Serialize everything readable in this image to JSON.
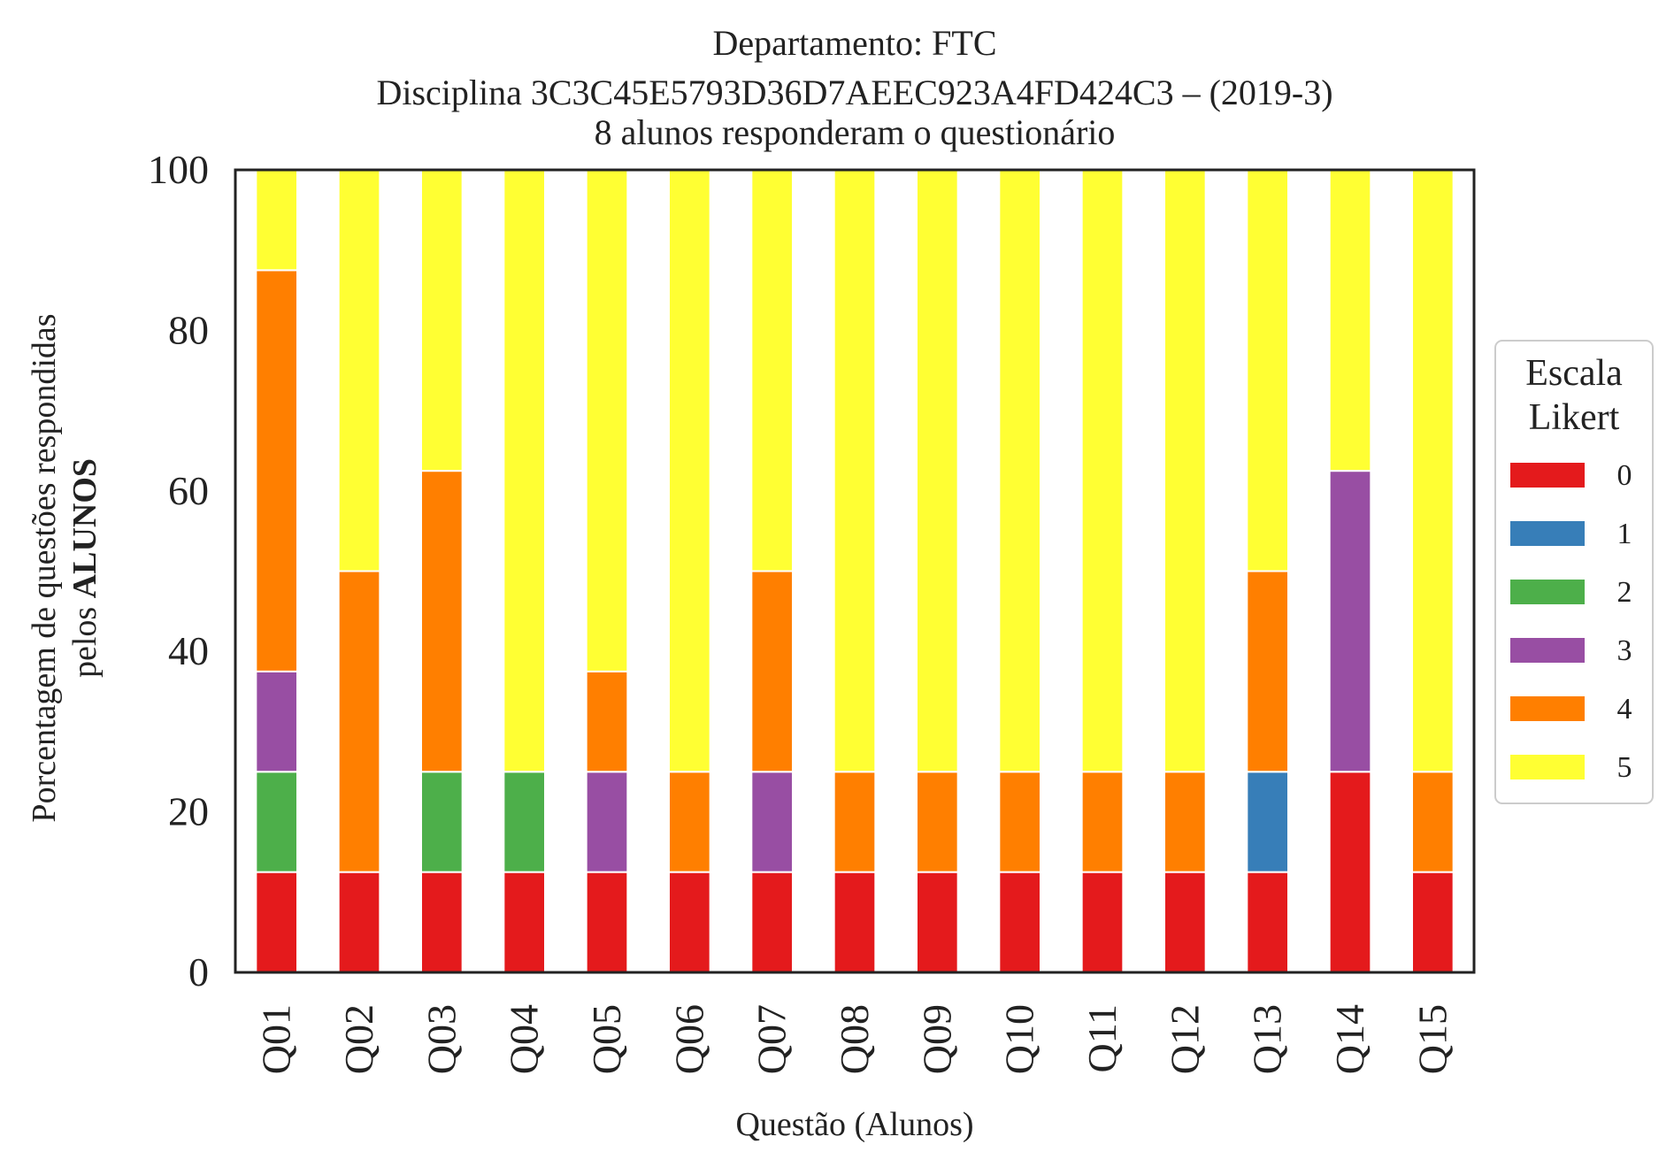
{
  "chart_data": {
    "type": "bar",
    "stacked": true,
    "title_lines": [
      "Departamento: FTC",
      "Disciplina 3C3C45E5793D36D7AEEC923A4FD424C3 – (2019-3)",
      "8 alunos responderam o questionário"
    ],
    "xlabel": "Questão (Alunos)",
    "ylabel_line1": "Porcentagem de questões respondidas",
    "ylabel_line2_prefix": "pelos ",
    "ylabel_line2_bold": "ALUNOS",
    "ylim": [
      0,
      100
    ],
    "yticks": [
      "0",
      "20",
      "40",
      "60",
      "80",
      "100"
    ],
    "categories": [
      "Q01",
      "Q02",
      "Q03",
      "Q04",
      "Q05",
      "Q06",
      "Q07",
      "Q08",
      "Q09",
      "Q10",
      "Q11",
      "Q12",
      "Q13",
      "Q14",
      "Q15"
    ],
    "legend": {
      "title_line1": "Escala",
      "title_line2": "Likert",
      "placement": "right"
    },
    "series": [
      {
        "name": "0",
        "color": "#e41a1c",
        "values": [
          12.5,
          12.5,
          12.5,
          12.5,
          12.5,
          12.5,
          12.5,
          12.5,
          12.5,
          12.5,
          12.5,
          12.5,
          12.5,
          25,
          12.5
        ]
      },
      {
        "name": "1",
        "color": "#377eb8",
        "values": [
          0,
          0,
          0,
          0,
          0,
          0,
          0,
          0,
          0,
          0,
          0,
          0,
          12.5,
          0,
          0
        ]
      },
      {
        "name": "2",
        "color": "#4daf4a",
        "values": [
          12.5,
          0,
          12.5,
          12.5,
          0,
          0,
          0,
          0,
          0,
          0,
          0,
          0,
          0,
          0,
          0
        ]
      },
      {
        "name": "3",
        "color": "#984ea3",
        "values": [
          12.5,
          0,
          0,
          0,
          12.5,
          0,
          12.5,
          0,
          0,
          0,
          0,
          0,
          0,
          37.5,
          0
        ]
      },
      {
        "name": "4",
        "color": "#ff7f00",
        "values": [
          50,
          37.5,
          37.5,
          0,
          12.5,
          12.5,
          25,
          12.5,
          12.5,
          12.5,
          12.5,
          12.5,
          25,
          0,
          12.5
        ]
      },
      {
        "name": "5",
        "color": "#ffff33",
        "values": [
          12.5,
          50,
          37.5,
          75,
          62.5,
          75,
          50,
          75,
          75,
          75,
          75,
          75,
          50,
          37.5,
          75
        ]
      }
    ]
  }
}
